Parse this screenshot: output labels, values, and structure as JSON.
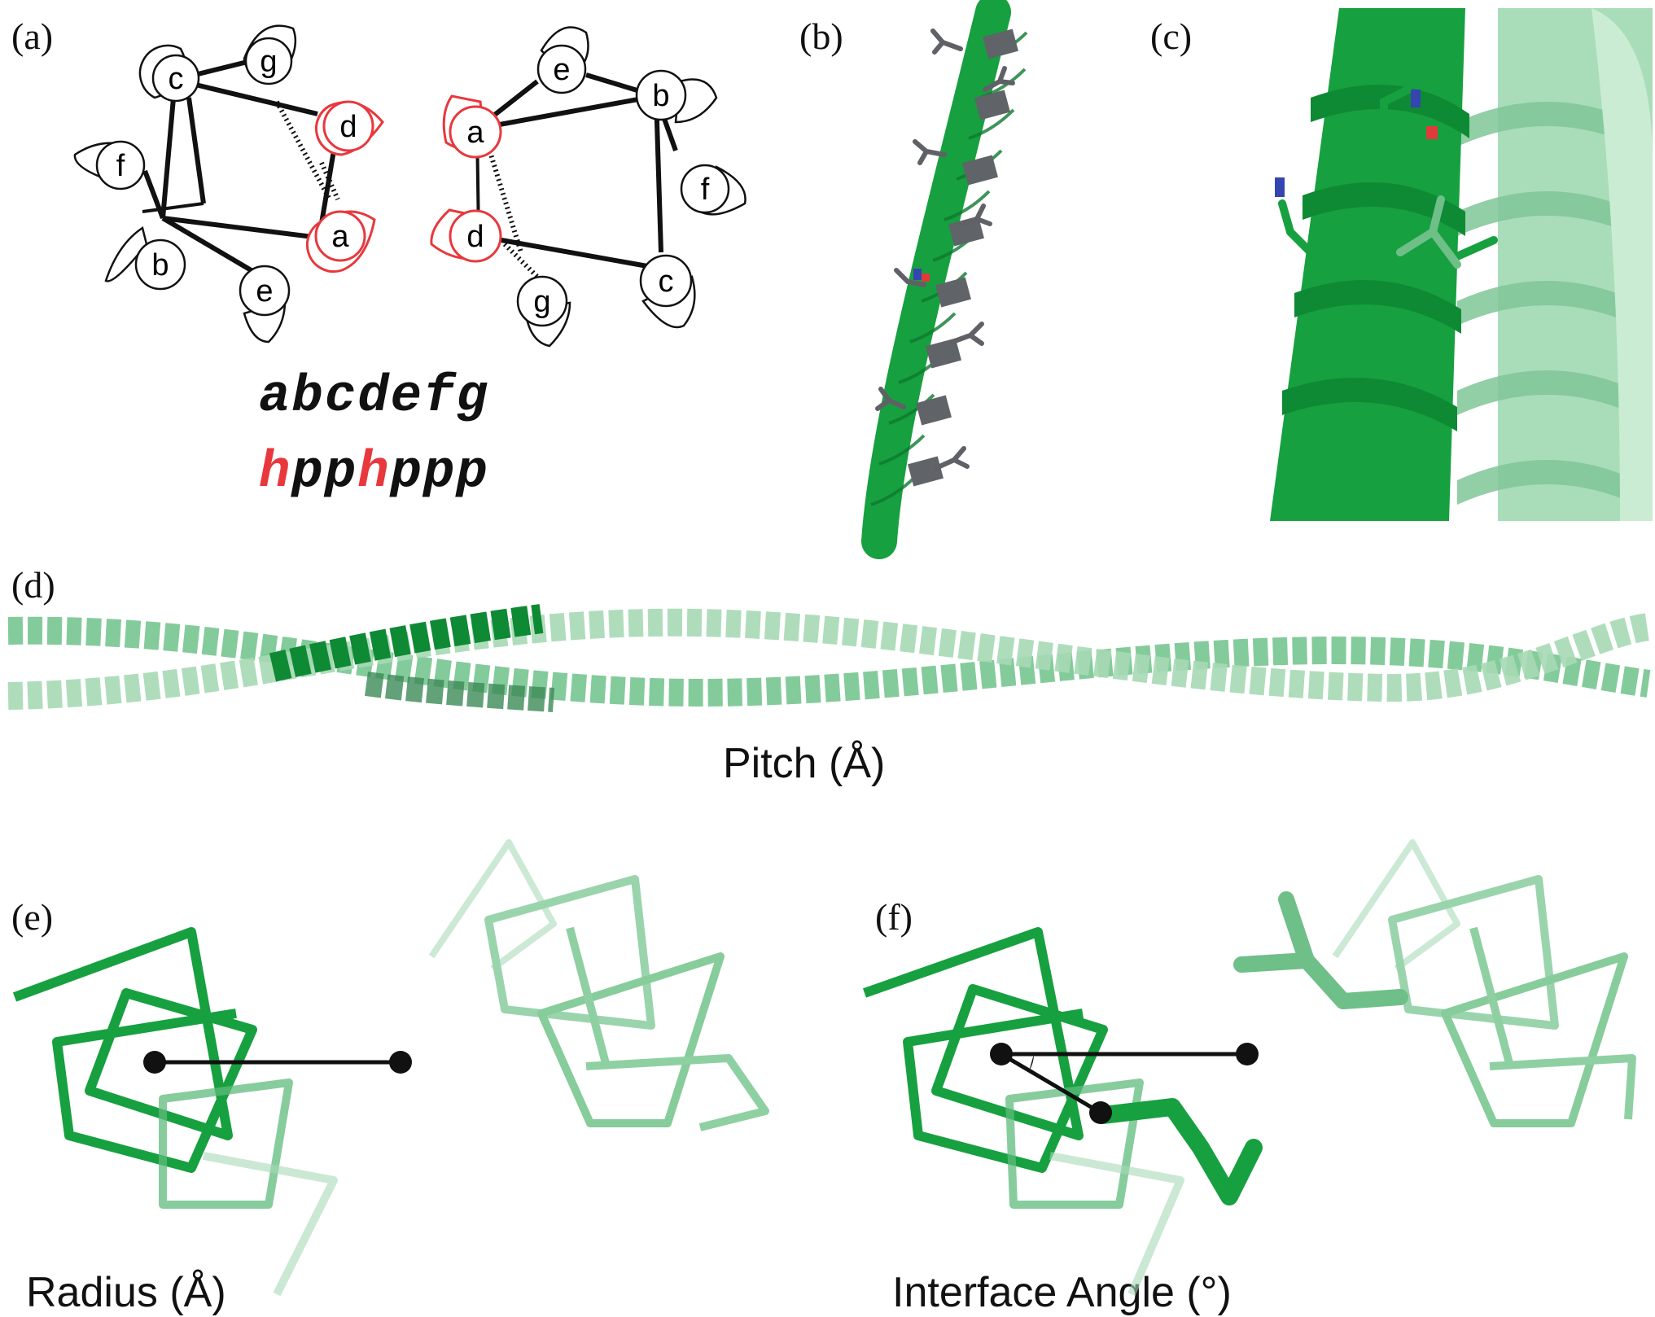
{
  "panels": {
    "a": {
      "label": "(a)",
      "left_wheel": [
        "c",
        "g",
        "d",
        "f",
        "a",
        "b",
        "e"
      ],
      "right_wheel": [
        "e",
        "b",
        "a",
        "f",
        "d",
        "c",
        "g"
      ],
      "heptad_positions": "abcdefg",
      "heptad_pattern": [
        {
          "char": "h",
          "color": "#e8383d"
        },
        {
          "char": "pp",
          "color": "#111111"
        },
        {
          "char": "h",
          "color": "#e8383d"
        },
        {
          "char": "ppp",
          "color": "#111111"
        }
      ]
    },
    "b": {
      "label": "(b)"
    },
    "c": {
      "label": "(c)"
    },
    "d": {
      "label": "(d)",
      "caption": "Pitch (Å)"
    },
    "e": {
      "label": "(e)",
      "caption": "Radius (Å)"
    },
    "f": {
      "label": "(f)",
      "caption": "Interface Angle (°)"
    }
  },
  "colors": {
    "helix_dark": "#17a03f",
    "helix_light": "#9fd8b1",
    "hydrophobic_outline": "#e8383d",
    "sidechain_gray": "#5f6166"
  }
}
